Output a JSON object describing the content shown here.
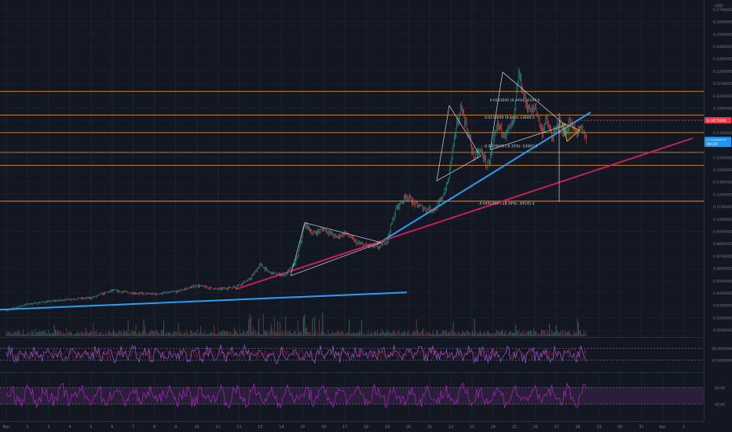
{
  "chart_data": {
    "type": "candlestick",
    "price_scale_unit": "USD",
    "x_tick_labels": [
      "Mar",
      "2",
      "3",
      "4",
      "5",
      "6",
      "7",
      "8",
      "9",
      "10",
      "11",
      "12",
      "13",
      "14",
      "15",
      "16",
      "17",
      "18",
      "19",
      "20",
      "21",
      "22",
      "23",
      "24",
      "25",
      "26",
      "27",
      "28",
      "29",
      "30",
      "31",
      "Apr",
      "2"
    ],
    "y_ticks": [
      "0.2700000",
      "0.2600000",
      "0.2500000",
      "0.2400000",
      "0.2300000",
      "0.2200000",
      "0.2100000",
      "0.2000000",
      "0.1900000",
      "0.1800000",
      "0.1700000",
      "0.1600000",
      "0.1500000",
      "0.1400000",
      "0.1300000",
      "0.1200000",
      "0.1100000",
      "0.1000000",
      "0.0900000",
      "0.0800000",
      "0.0700000",
      "0.0600000",
      "0.0500000",
      "0.0400000",
      "0.0300000",
      "0.0200000",
      "0.0100000"
    ],
    "y_range": [
      0.005,
      0.275
    ],
    "horizontal_levels": [
      0.2035,
      0.1842,
      0.17,
      0.154,
      0.1435,
      0.1145
    ],
    "price_tags": [
      {
        "label": "0.1871000",
        "value": 0.18,
        "color": "#f23645"
      },
      {
        "label": "0.1564627",
        "value": 0.164,
        "color": "#2196f3"
      },
      {
        "label": "00:29",
        "value": 0.161,
        "color": "#2196f3"
      }
    ],
    "measure_labels": [
      {
        "text": "0.0111045 (6.24%) 11104.5",
        "x": 22.85,
        "y": 0.1955
      },
      {
        "text": "0.0136000 (8.84%) 13600.0",
        "x": 22.6,
        "y": 0.1815
      },
      {
        "text": "-0.0120675 (-6.33%) -12067.5",
        "x": 22.55,
        "y": 0.1583
      },
      {
        "text": "-0.0491454 (-28.59%) -49145.4",
        "x": 22.3,
        "y": 0.1117
      }
    ],
    "rsi_ticks": [
      "60.0000000",
      "40.0000000"
    ],
    "stoch_ticks": [
      "60.00",
      "40.00"
    ],
    "colors": {
      "background": "#131722",
      "up": "#26a69a",
      "down": "#ef5350",
      "level": "#f0a030",
      "blue_trend": "#2a9df4",
      "red_trend": "#d61f5c",
      "rsi": "#7e57c2",
      "stoch_fill": "#2a1e3a"
    }
  }
}
